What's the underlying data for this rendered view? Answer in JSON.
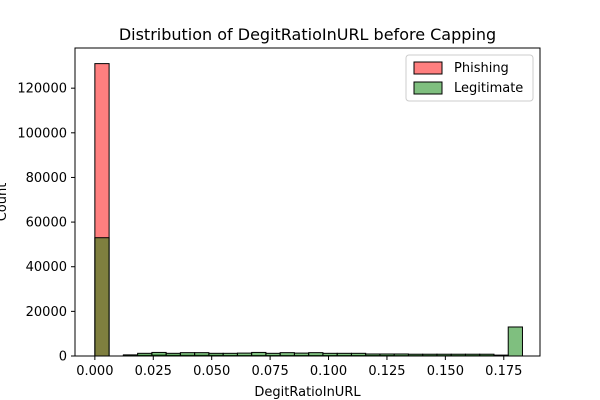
{
  "chart_data": {
    "type": "bar",
    "title": "Distribution of DegitRatioInURL before Capping",
    "xlabel": "DegitRatioInURL",
    "ylabel": "Count",
    "xlim": [
      -0.0085,
      0.1905
    ],
    "ylim": [
      0,
      138000
    ],
    "xticks": [
      0.0,
      0.025,
      0.05,
      0.075,
      0.1,
      0.125,
      0.15,
      0.175
    ],
    "xtick_labels": [
      "0.000",
      "0.025",
      "0.050",
      "0.075",
      "0.100",
      "0.125",
      "0.150",
      "0.175"
    ],
    "yticks": [
      0,
      20000,
      40000,
      60000,
      80000,
      100000,
      120000
    ],
    "ytick_labels": [
      "0",
      "20000",
      "40000",
      "60000",
      "80000",
      "100000",
      "120000"
    ],
    "bin_width": 0.0061,
    "bins_start": [
      0.0,
      0.0061,
      0.0122,
      0.0183,
      0.0244,
      0.0305,
      0.0366,
      0.0427,
      0.0488,
      0.0549,
      0.061,
      0.0671,
      0.0732,
      0.0793,
      0.0854,
      0.0915,
      0.0976,
      0.1037,
      0.1098,
      0.1159,
      0.122,
      0.1281,
      0.1342,
      0.1403,
      0.1464,
      0.1525,
      0.1586,
      0.1647,
      0.1708,
      0.1769
    ],
    "series": [
      {
        "name": "Phishing",
        "color": "#ff0000",
        "alpha": 0.5,
        "values": [
          131000,
          0,
          200,
          300,
          400,
          300,
          300,
          300,
          300,
          200,
          200,
          200,
          200,
          200,
          200,
          200,
          200,
          200,
          200,
          200,
          200,
          150,
          150,
          150,
          150,
          150,
          150,
          150,
          100,
          0
        ]
      },
      {
        "name": "Legitimate",
        "color": "#008000",
        "alpha": 0.5,
        "values": [
          53000,
          0,
          500,
          1200,
          1600,
          1200,
          1500,
          1500,
          1200,
          1200,
          1300,
          1600,
          1200,
          1500,
          1300,
          1500,
          1200,
          1200,
          1200,
          900,
          900,
          900,
          800,
          800,
          800,
          800,
          800,
          800,
          400,
          13000
        ]
      }
    ],
    "legend": {
      "placement": "top-right"
    },
    "grid": false
  }
}
